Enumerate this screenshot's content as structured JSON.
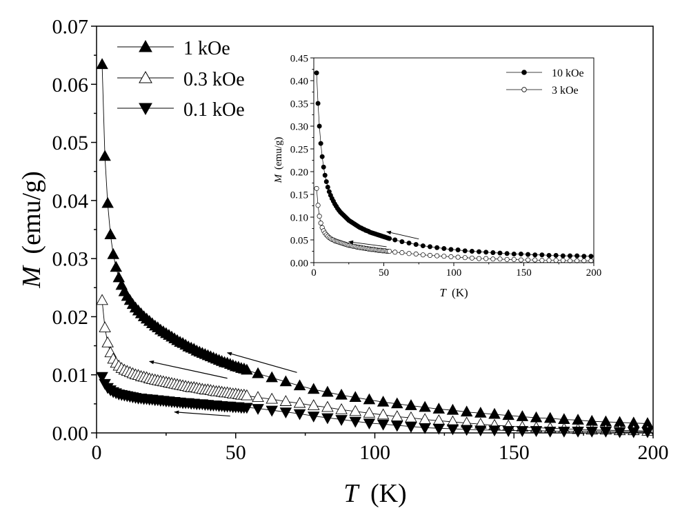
{
  "chart_data": [
    {
      "type": "scatter",
      "title": "",
      "xlabel": {
        "var": "T",
        "unit": "(K)"
      },
      "ylabel": {
        "var": "M",
        "unit": "(emu/g)"
      },
      "xlim": [
        0,
        200
      ],
      "ylim": [
        0,
        0.07
      ],
      "xticks": [
        0,
        50,
        100,
        150,
        200
      ],
      "xtick_labels": [
        "0",
        "50",
        "100",
        "150",
        "200"
      ],
      "yticks": [
        0,
        0.01,
        0.02,
        0.03,
        0.04,
        0.05,
        0.06,
        0.07
      ],
      "ytick_labels": [
        "0.00",
        "0.01",
        "0.02",
        "0.03",
        "0.04",
        "0.05",
        "0.06",
        "0.07"
      ],
      "legend_position": "top-left",
      "series": [
        {
          "name": "1 kOe",
          "marker": "triangle-up-filled",
          "x": [
            2,
            3,
            4,
            5,
            6,
            7,
            8,
            9,
            10,
            11,
            12,
            13,
            14,
            15,
            16,
            17,
            18,
            19,
            20,
            21,
            22,
            23,
            24,
            25,
            26,
            27,
            28,
            29,
            30,
            31,
            32,
            33,
            34,
            35,
            36,
            37,
            38,
            39,
            40,
            41,
            42,
            43,
            44,
            45,
            46,
            47,
            48,
            49,
            50,
            51,
            52,
            53,
            54,
            58,
            63,
            68,
            73,
            78,
            83,
            88,
            93,
            98,
            103,
            108,
            113,
            118,
            123,
            128,
            133,
            138,
            143,
            148,
            153,
            158,
            163,
            168,
            173,
            178,
            183,
            188,
            193,
            198
          ],
          "values": [
            0.0634,
            0.0476,
            0.0395,
            0.0341,
            0.0307,
            0.0285,
            0.0267,
            0.0254,
            0.0243,
            0.0235,
            0.0228,
            0.0221,
            0.0215,
            0.021,
            0.0205,
            0.02,
            0.0196,
            0.0192,
            0.0188,
            0.0184,
            0.0181,
            0.0177,
            0.0174,
            0.0171,
            0.0168,
            0.0165,
            0.0162,
            0.0159,
            0.0156,
            0.0154,
            0.0151,
            0.0148,
            0.0146,
            0.0144,
            0.0141,
            0.0139,
            0.0137,
            0.0135,
            0.0133,
            0.0131,
            0.0129,
            0.0127,
            0.0125,
            0.0123,
            0.0121,
            0.012,
            0.0118,
            0.0116,
            0.0114,
            0.0113,
            0.0111,
            0.011,
            0.0108,
            0.0102,
            0.0095,
            0.0088,
            0.0081,
            0.0075,
            0.007,
            0.0065,
            0.0061,
            0.0057,
            0.0053,
            0.005,
            0.0047,
            0.0044,
            0.0041,
            0.0039,
            0.0036,
            0.0034,
            0.0032,
            0.003,
            0.0028,
            0.0026,
            0.0025,
            0.0023,
            0.0022,
            0.002,
            0.0019,
            0.0018,
            0.0017,
            0.0016
          ]
        },
        {
          "name": "0.3 kOe",
          "marker": "triangle-up-open",
          "x": [
            2,
            3,
            4,
            5,
            6,
            7,
            8,
            9,
            10,
            11,
            12,
            13,
            14,
            15,
            16,
            17,
            18,
            19,
            20,
            21,
            22,
            23,
            24,
            25,
            26,
            27,
            28,
            29,
            30,
            31,
            32,
            33,
            34,
            35,
            36,
            37,
            38,
            39,
            40,
            41,
            42,
            43,
            44,
            45,
            46,
            47,
            48,
            49,
            50,
            51,
            52,
            53,
            54,
            58,
            63,
            68,
            73,
            78,
            83,
            88,
            93,
            98,
            103,
            108,
            113,
            118,
            123,
            128,
            133,
            138,
            143,
            148,
            153,
            158,
            163,
            168,
            173,
            178,
            183,
            188,
            193,
            198
          ],
          "values": [
            0.0228,
            0.0181,
            0.0155,
            0.0138,
            0.0127,
            0.012,
            0.0115,
            0.0111,
            0.0108,
            0.0106,
            0.0104,
            0.0102,
            0.01,
            0.0099,
            0.0097,
            0.0096,
            0.0095,
            0.0093,
            0.0092,
            0.0091,
            0.009,
            0.0089,
            0.0088,
            0.0087,
            0.0086,
            0.0085,
            0.0084,
            0.0083,
            0.0082,
            0.0081,
            0.008,
            0.0079,
            0.0078,
            0.0078,
            0.0077,
            0.0076,
            0.0075,
            0.0074,
            0.0074,
            0.0073,
            0.0072,
            0.0071,
            0.0071,
            0.007,
            0.0069,
            0.0069,
            0.0068,
            0.0067,
            0.0067,
            0.0066,
            0.0065,
            0.0065,
            0.0064,
            0.0061,
            0.0058,
            0.0054,
            0.0051,
            0.0047,
            0.0044,
            0.004,
            0.0037,
            0.0034,
            0.0031,
            0.0028,
            0.0026,
            0.0023,
            0.0021,
            0.0019,
            0.0017,
            0.0015,
            0.0013,
            0.0012,
            0.001,
            0.0009,
            0.0008,
            0.0007,
            0.0006,
            0.0005,
            0.0005,
            0.0004,
            0.0004,
            0.0003
          ]
        },
        {
          "name": "0.1 kOe",
          "marker": "triangle-down-filled",
          "x": [
            2,
            3,
            4,
            5,
            6,
            7,
            8,
            9,
            10,
            11,
            12,
            13,
            14,
            15,
            16,
            17,
            18,
            19,
            20,
            21,
            22,
            23,
            24,
            25,
            26,
            27,
            28,
            29,
            30,
            31,
            32,
            33,
            34,
            35,
            36,
            37,
            38,
            39,
            40,
            41,
            42,
            43,
            44,
            45,
            46,
            47,
            48,
            49,
            50,
            51,
            52,
            53,
            54,
            58,
            63,
            68,
            73,
            78,
            83,
            88,
            93,
            98,
            103,
            108,
            113,
            118,
            123,
            128,
            133,
            138,
            143,
            148,
            153,
            158,
            163,
            168,
            173,
            178,
            183,
            188,
            193,
            198
          ],
          "values": [
            0.0097,
            0.0085,
            0.0078,
            0.0074,
            0.0071,
            0.0069,
            0.0067,
            0.0066,
            0.0065,
            0.0064,
            0.0063,
            0.0062,
            0.0061,
            0.006,
            0.006,
            0.0059,
            0.0059,
            0.0058,
            0.0058,
            0.0057,
            0.0057,
            0.0056,
            0.0056,
            0.0055,
            0.0055,
            0.0054,
            0.0054,
            0.0053,
            0.0053,
            0.0052,
            0.0052,
            0.0052,
            0.0051,
            0.0051,
            0.005,
            0.005,
            0.005,
            0.0049,
            0.0049,
            0.0048,
            0.0048,
            0.0048,
            0.0047,
            0.0047,
            0.0046,
            0.0046,
            0.0046,
            0.0045,
            0.0045,
            0.0045,
            0.0044,
            0.0044,
            0.0044,
            0.0042,
            0.0039,
            0.0036,
            0.0033,
            0.0029,
            0.0026,
            0.0023,
            0.002,
            0.0017,
            0.0015,
            0.0013,
            0.0011,
            0.0009,
            0.0008,
            0.0007,
            0.0006,
            0.0005,
            0.0005,
            0.0004,
            0.0004,
            0.0004,
            0.0003,
            0.0003,
            0.0003,
            0.0003,
            0.0003,
            0.0002,
            0.0002,
            0.0002
          ]
        }
      ],
      "annotations": [
        {
          "type": "arrow",
          "from": [
            72,
            0.0104
          ],
          "to": [
            47,
            0.0138
          ]
        },
        {
          "type": "arrow",
          "from": [
            47,
            0.0094
          ],
          "to": [
            19,
            0.0123
          ]
        },
        {
          "type": "arrow",
          "from": [
            48,
            0.0029
          ],
          "to": [
            28,
            0.0036
          ]
        }
      ]
    },
    {
      "type": "scatter",
      "role": "inset",
      "title": "",
      "xlabel": {
        "var": "T",
        "unit": "(K)"
      },
      "ylabel": {
        "var": "M",
        "unit": "(emu/g)"
      },
      "xlim": [
        0,
        200
      ],
      "ylim": [
        0,
        0.45
      ],
      "xticks": [
        0,
        50,
        100,
        150,
        200
      ],
      "xtick_labels": [
        "0",
        "50",
        "100",
        "150",
        "200"
      ],
      "yticks": [
        0,
        0.05,
        0.1,
        0.15,
        0.2,
        0.25,
        0.3,
        0.35,
        0.4,
        0.45
      ],
      "ytick_labels": [
        "0.00",
        "0.05",
        "0.10",
        "0.15",
        "0.20",
        "0.25",
        "0.30",
        "0.35",
        "0.40",
        "0.45"
      ],
      "legend_position": "top-right",
      "series": [
        {
          "name": "10 kOe",
          "marker": "circle-filled",
          "x": [
            2,
            3,
            4,
            5,
            6,
            7,
            8,
            9,
            10,
            11,
            12,
            13,
            14,
            15,
            16,
            17,
            18,
            19,
            20,
            21,
            22,
            23,
            24,
            25,
            26,
            27,
            28,
            29,
            30,
            31,
            32,
            33,
            34,
            35,
            36,
            37,
            38,
            39,
            40,
            41,
            42,
            43,
            44,
            45,
            46,
            47,
            48,
            49,
            50,
            51,
            52,
            53,
            54,
            58,
            63,
            68,
            73,
            78,
            83,
            88,
            93,
            98,
            103,
            108,
            113,
            118,
            123,
            128,
            133,
            138,
            143,
            148,
            153,
            158,
            163,
            168,
            173,
            178,
            183,
            188,
            193,
            198
          ],
          "values": [
            0.417,
            0.35,
            0.3,
            0.262,
            0.233,
            0.21,
            0.192,
            0.178,
            0.166,
            0.156,
            0.148,
            0.141,
            0.135,
            0.129,
            0.124,
            0.119,
            0.115,
            0.111,
            0.108,
            0.105,
            0.102,
            0.099,
            0.096,
            0.093,
            0.091,
            0.089,
            0.087,
            0.085,
            0.083,
            0.081,
            0.079,
            0.077,
            0.076,
            0.074,
            0.073,
            0.071,
            0.07,
            0.069,
            0.067,
            0.066,
            0.065,
            0.064,
            0.063,
            0.062,
            0.061,
            0.06,
            0.059,
            0.058,
            0.057,
            0.056,
            0.055,
            0.054,
            0.053,
            0.05,
            0.046,
            0.043,
            0.04,
            0.037,
            0.035,
            0.033,
            0.031,
            0.029,
            0.028,
            0.026,
            0.025,
            0.024,
            0.023,
            0.022,
            0.021,
            0.02,
            0.019,
            0.019,
            0.018,
            0.017,
            0.017,
            0.016,
            0.016,
            0.015,
            0.015,
            0.015,
            0.014,
            0.014
          ]
        },
        {
          "name": "3 kOe",
          "marker": "circle-open",
          "x": [
            2,
            3,
            4,
            5,
            6,
            7,
            8,
            9,
            10,
            11,
            12,
            13,
            14,
            15,
            16,
            17,
            18,
            19,
            20,
            21,
            22,
            23,
            24,
            25,
            26,
            27,
            28,
            29,
            30,
            31,
            32,
            33,
            34,
            35,
            36,
            37,
            38,
            39,
            40,
            41,
            42,
            43,
            44,
            45,
            46,
            47,
            48,
            49,
            50,
            51,
            52,
            53,
            54,
            58,
            63,
            68,
            73,
            78,
            83,
            88,
            93,
            98,
            103,
            108,
            113,
            118,
            123,
            128,
            133,
            138,
            143,
            148,
            153,
            158,
            163,
            168,
            173,
            178,
            183,
            188,
            193,
            198
          ],
          "values": [
            0.163,
            0.126,
            0.102,
            0.087,
            0.077,
            0.07,
            0.065,
            0.061,
            0.058,
            0.055,
            0.053,
            0.051,
            0.05,
            0.048,
            0.047,
            0.046,
            0.045,
            0.044,
            0.043,
            0.042,
            0.041,
            0.04,
            0.039,
            0.038,
            0.038,
            0.037,
            0.036,
            0.036,
            0.035,
            0.034,
            0.034,
            0.033,
            0.033,
            0.032,
            0.032,
            0.031,
            0.031,
            0.03,
            0.03,
            0.029,
            0.029,
            0.029,
            0.028,
            0.028,
            0.027,
            0.027,
            0.027,
            0.026,
            0.026,
            0.026,
            0.025,
            0.025,
            0.025,
            0.023,
            0.022,
            0.02,
            0.019,
            0.017,
            0.016,
            0.015,
            0.014,
            0.013,
            0.012,
            0.011,
            0.01,
            0.009,
            0.009,
            0.008,
            0.008,
            0.007,
            0.007,
            0.006,
            0.006,
            0.006,
            0.005,
            0.005,
            0.005,
            0.005,
            0.004,
            0.004,
            0.004,
            0.004
          ]
        }
      ],
      "annotations": [
        {
          "type": "arrow",
          "from": [
            75,
            0.052
          ],
          "to": [
            52,
            0.068
          ]
        },
        {
          "type": "arrow",
          "from": [
            52,
            0.035
          ],
          "to": [
            25,
            0.046
          ]
        }
      ]
    }
  ]
}
